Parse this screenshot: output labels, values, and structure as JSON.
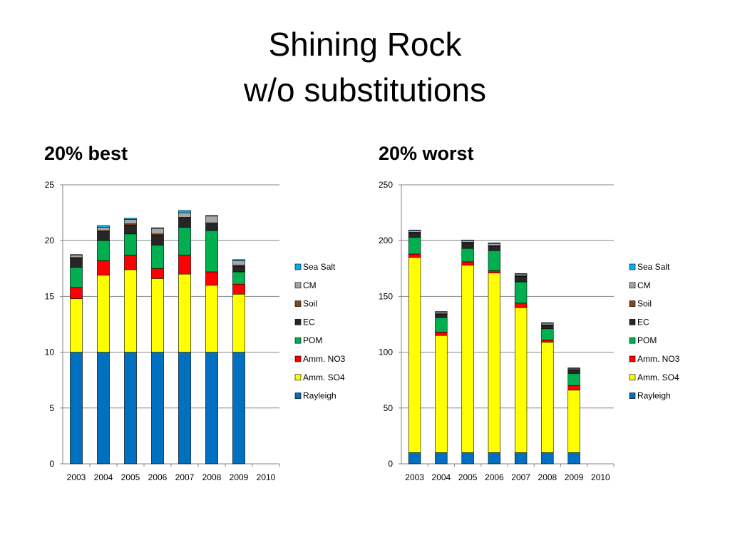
{
  "slide": {
    "title_line1": "Shining Rock",
    "title_line2": "w/o substitutions",
    "left_heading": "20% best",
    "right_heading": "20% worst"
  },
  "chart_data": [
    {
      "type": "bar",
      "stacked": true,
      "title": "20% best",
      "xlabel": "",
      "ylabel": "",
      "categories": [
        "2003",
        "2004",
        "2005",
        "2006",
        "2007",
        "2008",
        "2009",
        "2010"
      ],
      "ylim": [
        0,
        25
      ],
      "yticks": [
        0,
        5,
        10,
        15,
        20,
        25
      ],
      "grid": true,
      "legend_position": "right",
      "series": [
        {
          "name": "Rayleigh",
          "color": "#0070C0",
          "values": [
            10,
            10,
            10,
            10,
            10,
            10,
            10,
            null
          ]
        },
        {
          "name": "Amm. SO4",
          "color": "#FFFF00",
          "values": [
            4.8,
            6.9,
            7.4,
            6.6,
            7.0,
            6.0,
            5.2,
            null
          ]
        },
        {
          "name": "Amm. NO3",
          "color": "#FF0000",
          "values": [
            1.0,
            1.3,
            1.3,
            0.9,
            1.7,
            1.2,
            0.9,
            null
          ]
        },
        {
          "name": "POM",
          "color": "#00B050",
          "values": [
            1.8,
            1.8,
            1.9,
            2.1,
            2.5,
            3.7,
            1.1,
            null
          ]
        },
        {
          "name": "EC",
          "color": "#262626",
          "values": [
            0.8,
            0.8,
            0.8,
            0.9,
            0.8,
            0.6,
            0.5,
            null
          ]
        },
        {
          "name": "Soil",
          "color": "#8B4513",
          "values": [
            0.1,
            0.1,
            0.1,
            0.1,
            0.1,
            0.1,
            0.1,
            null
          ]
        },
        {
          "name": "CM",
          "color": "#A6A6A6",
          "values": [
            0.2,
            0.3,
            0.4,
            0.5,
            0.4,
            0.6,
            0.4,
            null
          ]
        },
        {
          "name": "Sea Salt",
          "color": "#00B0F0",
          "values": [
            0.05,
            0.15,
            0.1,
            0.05,
            0.2,
            0.05,
            0.1,
            null
          ]
        }
      ]
    },
    {
      "type": "bar",
      "stacked": true,
      "title": "20% worst",
      "xlabel": "",
      "ylabel": "",
      "categories": [
        "2003",
        "2004",
        "2005",
        "2006",
        "2007",
        "2008",
        "2009",
        "2010"
      ],
      "ylim": [
        0,
        250
      ],
      "yticks": [
        0,
        50,
        100,
        150,
        200,
        250
      ],
      "grid": true,
      "legend_position": "right",
      "series": [
        {
          "name": "Rayleigh",
          "color": "#0070C0",
          "values": [
            10,
            10,
            10,
            10,
            10,
            10,
            10,
            null
          ]
        },
        {
          "name": "Amm. SO4",
          "color": "#FFFF00",
          "values": [
            175,
            105,
            168,
            161,
            130,
            99,
            56,
            null
          ]
        },
        {
          "name": "Amm. NO3",
          "color": "#FF0000",
          "values": [
            3,
            3,
            3,
            2,
            4,
            2,
            4,
            null
          ]
        },
        {
          "name": "POM",
          "color": "#00B050",
          "values": [
            15,
            13,
            12,
            18,
            19,
            10,
            11,
            null
          ]
        },
        {
          "name": "EC",
          "color": "#262626",
          "values": [
            4,
            3,
            5,
            4,
            5,
            3,
            3,
            null
          ]
        },
        {
          "name": "Soil",
          "color": "#8B4513",
          "values": [
            0.5,
            0.5,
            0.5,
            0.5,
            0.5,
            0.5,
            0.5,
            null
          ]
        },
        {
          "name": "CM",
          "color": "#A6A6A6",
          "values": [
            1.5,
            1.5,
            1.5,
            2,
            1.5,
            1.5,
            1,
            null
          ]
        },
        {
          "name": "Sea Salt",
          "color": "#00B0F0",
          "values": [
            0.5,
            0.5,
            0.5,
            0.5,
            0.5,
            0.5,
            0.5,
            null
          ]
        }
      ]
    }
  ]
}
